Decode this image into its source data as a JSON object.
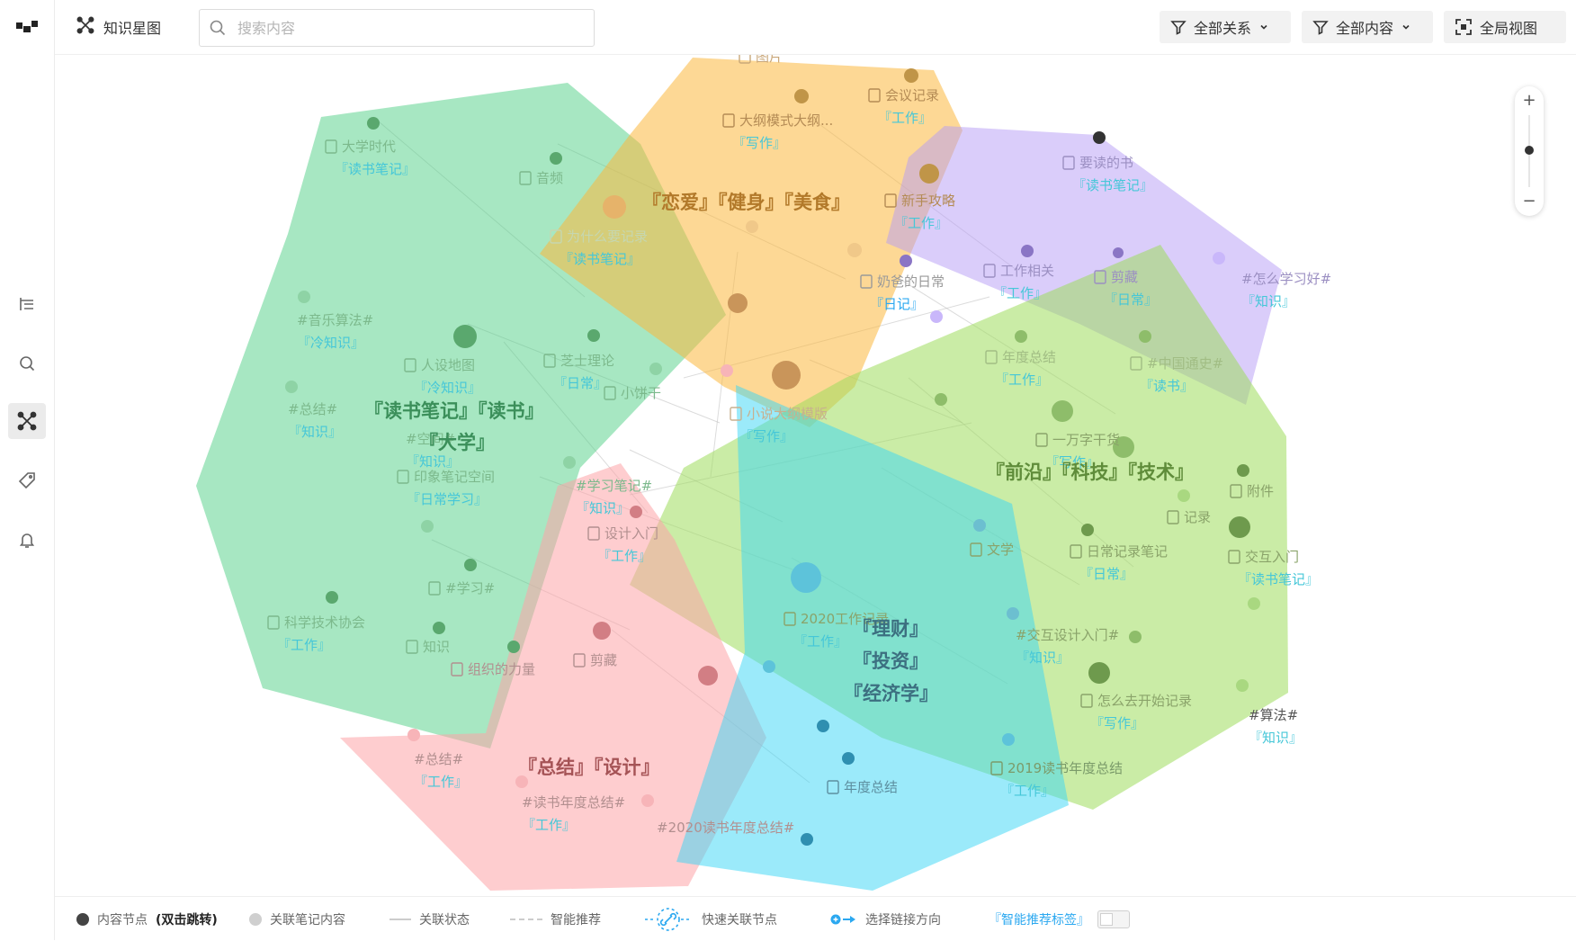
{
  "header": {
    "title": "知识星图",
    "search_placeholder": "搜索内容",
    "filter_relations": "全部关系",
    "filter_content": "全部内容",
    "global_view": "全局视图"
  },
  "sidebar": {
    "icons": [
      "app-logo-icon",
      "outline-icon",
      "search-icon",
      "graph-icon",
      "tag-icon",
      "bell-icon"
    ]
  },
  "clusters": [
    {
      "id": "green",
      "color": "#4fcf86",
      "opacity": 0.5,
      "tags": [
        "『读书笔记』『读书』",
        "『大学』"
      ]
    },
    {
      "id": "orange",
      "color": "#fcb83e",
      "opacity": 0.55,
      "tags": [
        "『恋爱』『健身』『美食』"
      ]
    },
    {
      "id": "purple",
      "color": "#b69cf6",
      "opacity": 0.5,
      "tags": []
    },
    {
      "id": "lime",
      "color": "#9fdc5c",
      "opacity": 0.55,
      "tags": [
        "『前沿』『科技』『技术』"
      ]
    },
    {
      "id": "pink",
      "color": "#fea4a8",
      "opacity": 0.55,
      "tags": [
        "『总结』『设计』"
      ]
    },
    {
      "id": "cyan",
      "color": "#38d5f6",
      "opacity": 0.5,
      "tags": [
        "『理财』",
        "『投资』",
        "『经济学』"
      ]
    }
  ],
  "nodes": [
    {
      "label": "大学时代",
      "tag": "『读书笔记』"
    },
    {
      "label": "音频",
      "tag": ""
    },
    {
      "label": "为什么要记录",
      "tag": "『读书笔记』"
    },
    {
      "label": "#音乐算法#",
      "tag": "『冷知识』"
    },
    {
      "label": "人设地图",
      "tag": "『冷知识』"
    },
    {
      "label": "芝士理论",
      "tag": "『日常』"
    },
    {
      "label": "小饼干",
      "tag": ""
    },
    {
      "label": "#总结#",
      "tag": "『知识』"
    },
    {
      "label": "#空间#",
      "tag": "『知识』"
    },
    {
      "label": "印象笔记空间",
      "tag": "『日常学习』"
    },
    {
      "label": "#学习笔记#",
      "tag": "『知识』"
    },
    {
      "label": "设计入门",
      "tag": "『工作』"
    },
    {
      "label": "#学习#",
      "tag": ""
    },
    {
      "label": "科学技术协会",
      "tag": "『工作』"
    },
    {
      "label": "知识",
      "tag": ""
    },
    {
      "label": "组织的力量",
      "tag": ""
    },
    {
      "label": "剪藏",
      "tag": ""
    },
    {
      "label": "图片",
      "tag": ""
    },
    {
      "label": "会议记录",
      "tag": "『工作』"
    },
    {
      "label": "大纲模式大纲...",
      "tag": "『写作』"
    },
    {
      "label": "新手攻略",
      "tag": "『工作』"
    },
    {
      "label": "奶爸的日常",
      "tag": "『日记』"
    },
    {
      "label": "小说大纲模版",
      "tag": "『写作』"
    },
    {
      "label": "要读的书",
      "tag": "『读书笔记』"
    },
    {
      "label": "工作相关",
      "tag": "『工作』"
    },
    {
      "label": "剪藏",
      "tag": "『日常』"
    },
    {
      "label": "#怎么学习好#",
      "tag": "『知识』"
    },
    {
      "label": "年度总结",
      "tag": "『工作』"
    },
    {
      "label": "#中国通史#",
      "tag": "『读书』"
    },
    {
      "label": "一万字干货",
      "tag": "『写作』"
    },
    {
      "label": "附件",
      "tag": ""
    },
    {
      "label": "记录",
      "tag": ""
    },
    {
      "label": "文学",
      "tag": ""
    },
    {
      "label": "日常记录笔记",
      "tag": "『日常』"
    },
    {
      "label": "交互入门",
      "tag": "『读书笔记』"
    },
    {
      "label": "2020工作记录",
      "tag": "『工作』"
    },
    {
      "label": "#交互设计入门#",
      "tag": "『知识』"
    },
    {
      "label": "怎么去开始记录",
      "tag": "『写作』"
    },
    {
      "label": "#算法#",
      "tag": "『知识』"
    },
    {
      "label": "#总结#",
      "tag": "『工作』"
    },
    {
      "label": "#读书年度总结#",
      "tag": "『工作』"
    },
    {
      "label": "#2020读书年度总结#",
      "tag": ""
    },
    {
      "label": "年度总结",
      "tag": ""
    },
    {
      "label": "2019读书年度总结",
      "tag": "『工作』"
    }
  ],
  "legend": {
    "content_node": "内容节点",
    "double_click": "(双击跳转)",
    "related_note": "关联笔记内容",
    "relation_state": "关联状态",
    "smart_recommend": "智能推荐",
    "quick_link": "快速关联节点",
    "choose_direction": "选择链接方向",
    "smart_tag": "『智能推荐标签』"
  }
}
